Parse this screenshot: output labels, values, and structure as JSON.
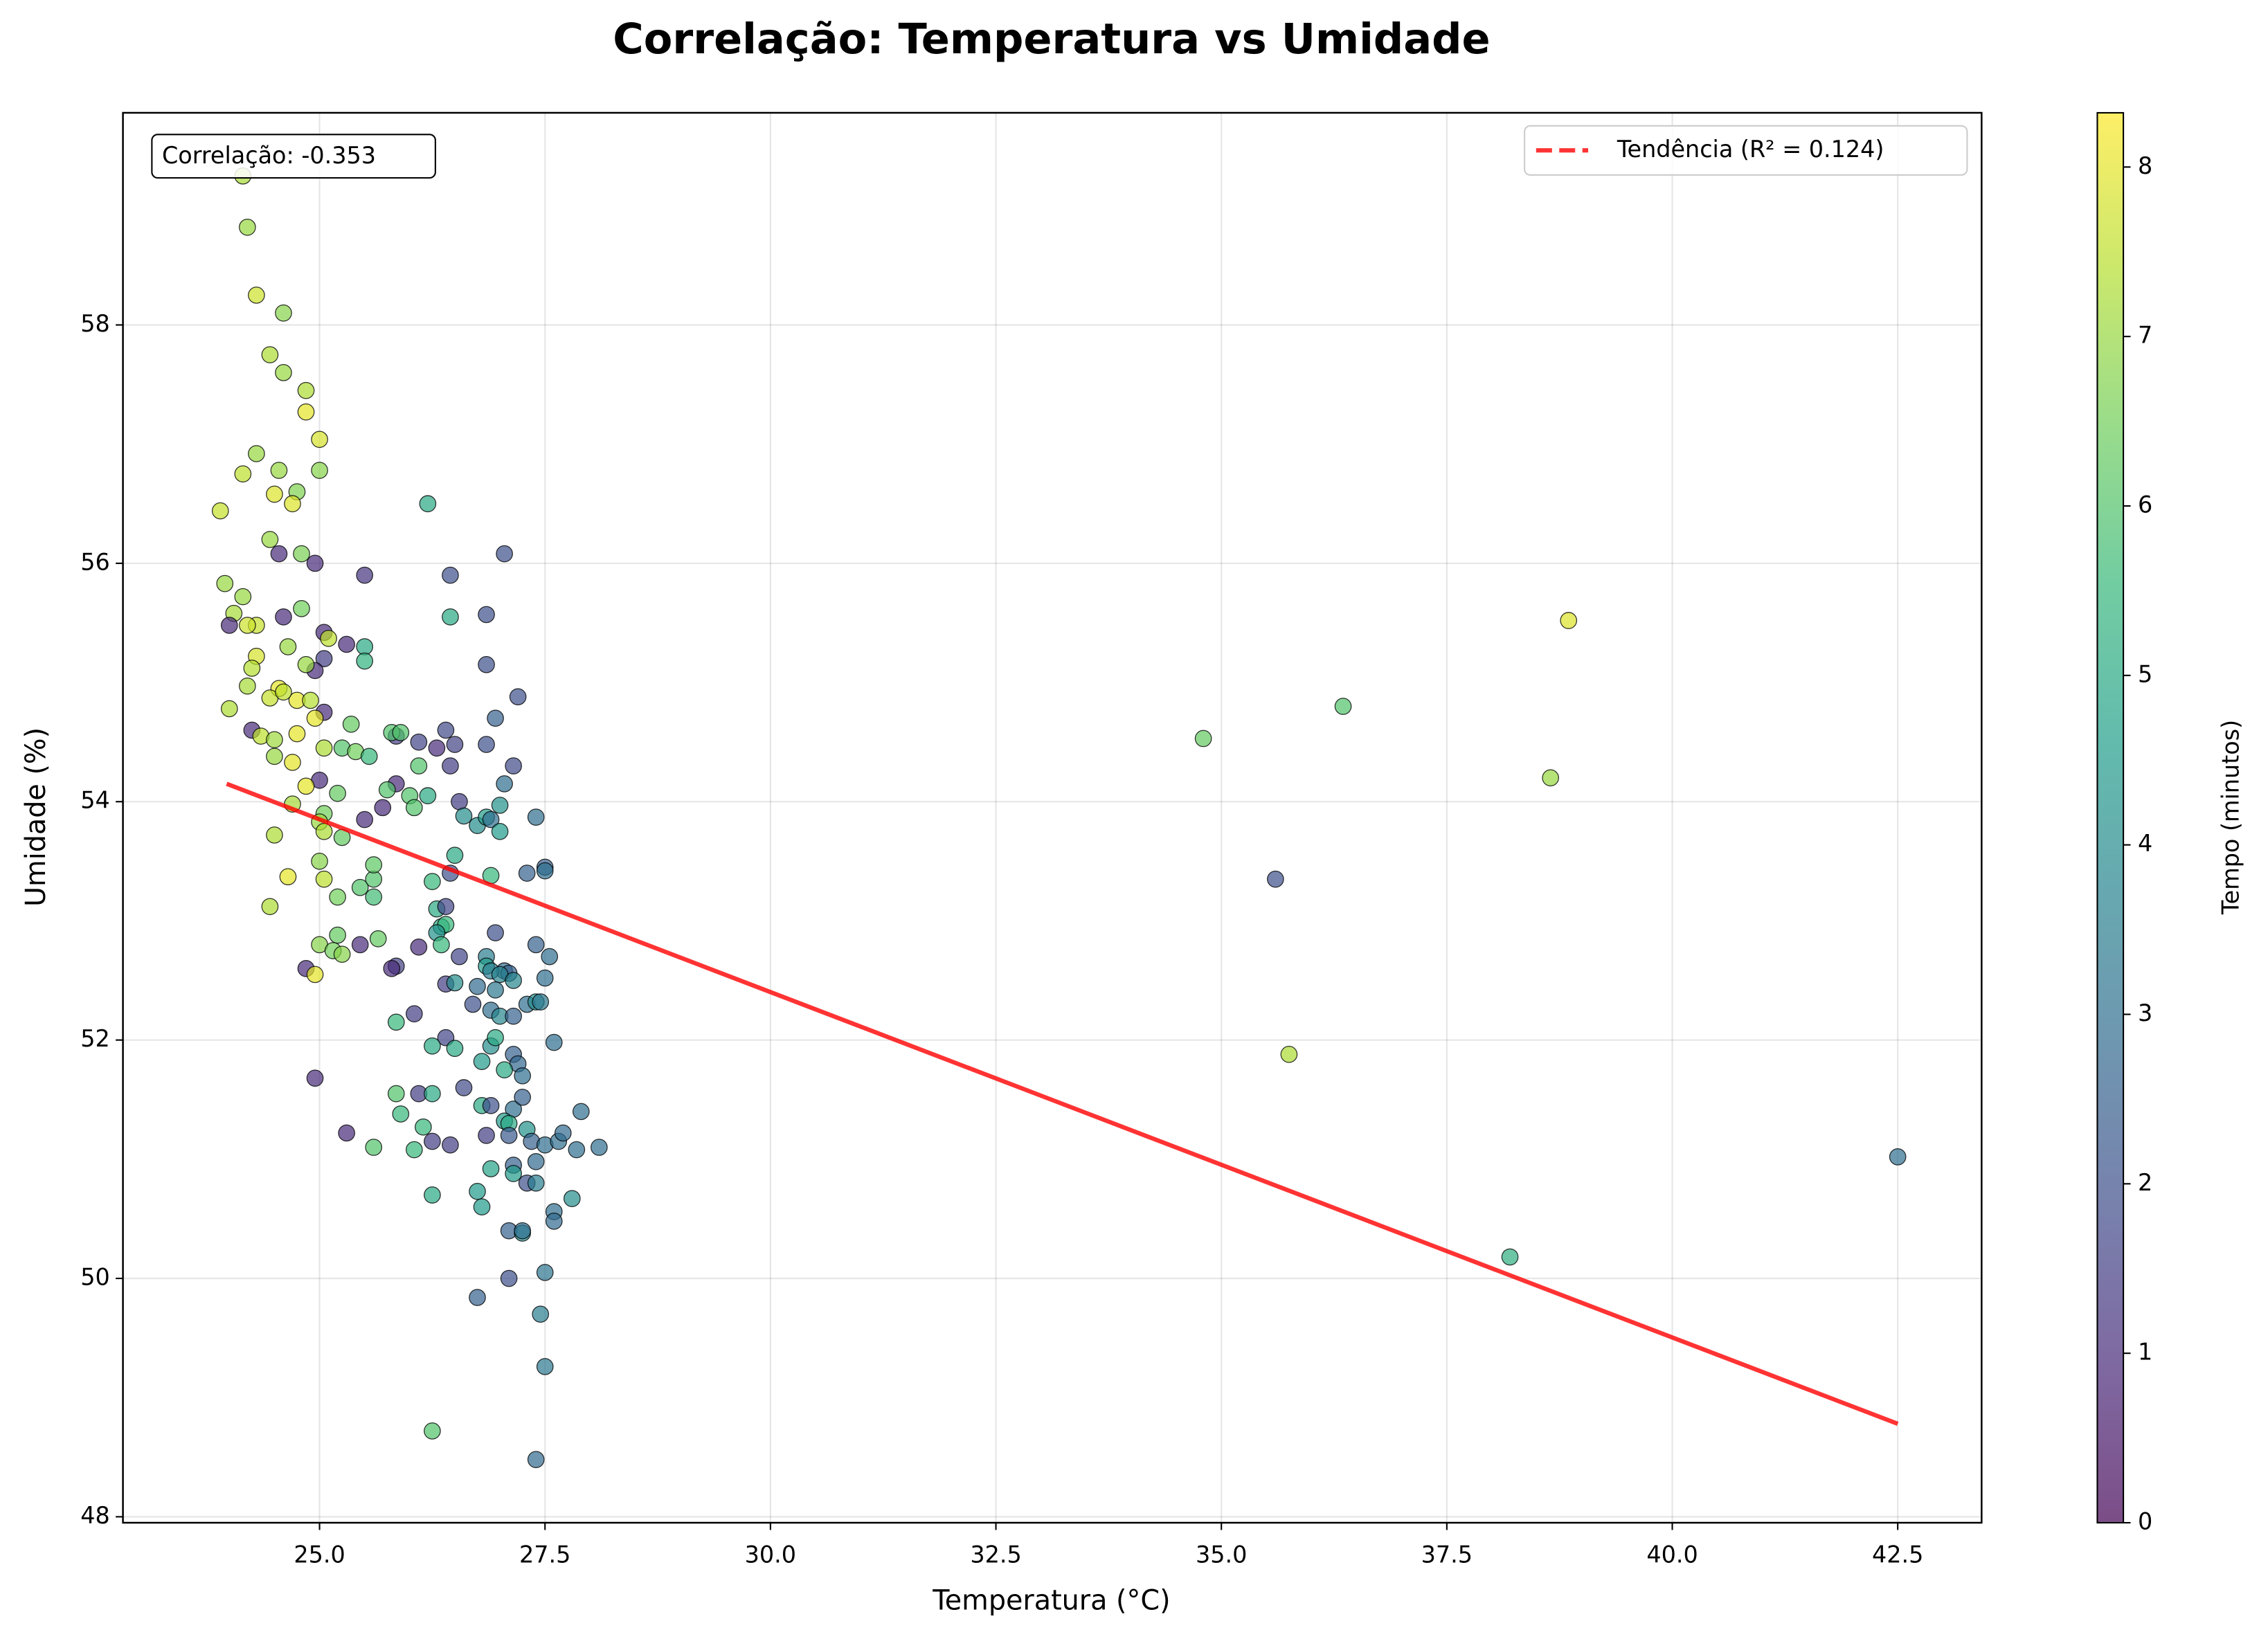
{
  "chart_data": {
    "type": "scatter",
    "title": "Correlação: Temperatura vs Umidade",
    "x_label": "Temperatura (°C)",
    "y_label": "Umidade (%)",
    "annotation": "Correlação: -0.353",
    "xlim": [
      22.82,
      43.43
    ],
    "ylim": [
      47.95,
      59.78
    ],
    "xticks": [
      {
        "value": 25,
        "label": "25.0"
      },
      27.5,
      {
        "value": 30,
        "label": "30.0"
      },
      32.5,
      {
        "value": 35,
        "label": "35.0"
      },
      37.5,
      {
        "value": 40,
        "label": "40.0"
      },
      42.5
    ],
    "yticks": [
      48,
      50,
      52,
      54,
      56,
      58
    ],
    "grid": true,
    "legend": "upper right",
    "colormap": "viridis",
    "clim": [
      0,
      8.32
    ],
    "colorbar_label": "Tempo (minutos)",
    "colorbar_ticks": [
      0,
      1,
      2,
      3,
      4,
      5,
      6,
      7,
      8
    ],
    "series": [
      {
        "type": "scatter",
        "x": [
          34.8,
          35.6,
          36.35,
          35.75,
          38.85,
          38.65,
          38.2,
          42.5,
          24.15,
          24.2,
          24.3,
          24.6,
          24.45,
          24.6,
          24.85,
          24.85,
          25.0,
          24.3,
          24.15,
          24.55,
          25.0,
          23.9,
          24.5,
          24.75,
          24.7,
          24.45,
          24.55,
          24.8,
          24.95,
          23.95,
          24.05,
          24.15,
          24.0,
          24.3,
          24.2,
          24.6,
          24.8,
          25.05,
          25.1,
          25.3,
          25.5,
          25.5,
          24.3,
          24.25,
          25.05,
          24.95,
          24.2,
          24.55,
          24.65,
          24.85,
          24.45,
          24.75,
          24.9,
          24.6,
          25.05,
          24.95,
          24.0,
          24.25,
          24.35,
          24.5,
          24.75,
          25.05,
          25.25,
          25.4,
          25.35,
          25.55,
          24.5,
          24.7,
          25.0,
          24.85,
          25.2,
          24.7,
          25.05,
          25.0,
          25.05,
          25.25,
          25.5,
          24.5,
          24.65,
          25.0,
          25.05,
          25.2,
          24.45,
          25.45,
          25.6,
          25.6,
          25.6,
          25.0,
          25.2,
          25.45,
          25.15,
          25.25,
          24.85,
          24.95,
          25.65,
          24.95,
          25.3,
          25.6,
          26.2,
          27.05,
          25.5,
          26.45,
          26.45,
          26.85,
          26.85,
          27.2,
          26.95,
          25.85,
          25.8,
          25.9,
          26.1,
          26.4,
          26.5,
          26.85,
          26.3,
          26.45,
          27.15,
          27.05,
          25.85,
          25.75,
          26.0,
          26.2,
          26.1,
          26.55,
          25.7,
          26.05,
          26.6,
          26.75,
          26.85,
          26.9,
          27.0,
          27.0,
          27.4,
          26.5,
          26.45,
          26.9,
          27.3,
          27.5,
          27.5,
          26.25,
          26.3,
          26.4,
          26.35,
          26.4,
          26.3,
          26.35,
          26.95,
          27.4,
          26.1,
          25.85,
          25.8,
          26.55,
          26.85,
          26.85,
          27.05,
          27.1,
          26.9,
          27.0,
          27.55,
          27.5,
          26.4,
          26.5,
          26.75,
          26.95,
          27.15,
          26.7,
          27.3,
          27.4,
          27.45,
          26.9,
          27.0,
          27.15,
          25.85,
          26.05,
          26.4,
          26.25,
          26.5,
          26.9,
          26.95,
          27.6,
          27.15,
          26.8,
          27.2,
          27.05,
          27.25,
          25.85,
          26.1,
          26.25,
          26.6,
          26.8,
          26.9,
          27.15,
          27.25,
          25.9,
          26.15,
          27.05,
          27.1,
          26.85,
          27.1,
          27.3,
          27.35,
          26.25,
          26.45,
          26.05,
          27.5,
          27.65,
          27.7,
          27.9,
          27.85,
          28.1,
          27.4,
          26.9,
          27.15,
          27.15,
          27.3,
          27.4,
          26.25,
          26.75,
          26.8,
          27.6,
          27.8,
          27.6,
          27.1,
          27.25,
          27.25,
          27.5,
          27.1,
          26.75,
          27.45,
          27.5,
          26.25,
          27.4
        ],
        "values": [
          54.53,
          53.35,
          54.8,
          51.88,
          55.52,
          54.2,
          50.18,
          51.02,
          59.25,
          58.82,
          58.25,
          58.1,
          57.75,
          57.6,
          57.45,
          57.27,
          57.04,
          56.92,
          56.75,
          56.78,
          56.78,
          56.44,
          56.58,
          56.6,
          56.5,
          56.2,
          56.08,
          56.08,
          56.0,
          55.83,
          55.58,
          55.72,
          55.48,
          55.48,
          55.48,
          55.55,
          55.62,
          55.42,
          55.37,
          55.32,
          55.3,
          55.18,
          55.22,
          55.12,
          55.2,
          55.1,
          54.97,
          54.95,
          55.3,
          55.15,
          54.87,
          54.85,
          54.85,
          54.92,
          54.75,
          54.7,
          54.78,
          54.6,
          54.55,
          54.52,
          54.57,
          54.45,
          54.45,
          54.42,
          54.65,
          54.38,
          54.38,
          54.33,
          54.18,
          54.13,
          54.07,
          53.98,
          53.9,
          53.83,
          53.75,
          53.7,
          53.85,
          53.72,
          53.37,
          53.5,
          53.35,
          53.2,
          53.12,
          53.28,
          53.35,
          53.2,
          53.47,
          52.8,
          52.88,
          52.8,
          52.75,
          52.72,
          52.6,
          52.55,
          52.85,
          51.68,
          51.22,
          51.1,
          56.5,
          56.08,
          55.9,
          55.9,
          55.55,
          55.57,
          55.15,
          54.88,
          54.7,
          54.55,
          54.58,
          54.58,
          54.5,
          54.6,
          54.48,
          54.48,
          54.45,
          54.3,
          54.3,
          54.15,
          54.15,
          54.1,
          54.05,
          54.05,
          54.3,
          54.0,
          53.95,
          53.95,
          53.88,
          53.8,
          53.87,
          53.85,
          53.75,
          53.97,
          53.87,
          53.55,
          53.4,
          53.38,
          53.4,
          53.45,
          53.42,
          53.33,
          53.1,
          53.12,
          52.95,
          52.97,
          52.9,
          52.8,
          52.9,
          52.8,
          52.78,
          52.62,
          52.6,
          52.7,
          52.7,
          52.62,
          52.58,
          52.56,
          52.58,
          52.55,
          52.7,
          52.52,
          52.47,
          52.48,
          52.45,
          52.42,
          52.5,
          52.3,
          52.3,
          52.32,
          52.32,
          52.25,
          52.2,
          52.2,
          52.15,
          52.22,
          52.02,
          51.95,
          51.93,
          51.95,
          52.02,
          51.98,
          51.88,
          51.82,
          51.8,
          51.75,
          51.7,
          51.55,
          51.55,
          51.55,
          51.6,
          51.45,
          51.45,
          51.42,
          51.52,
          51.38,
          51.27,
          51.32,
          51.3,
          51.2,
          51.2,
          51.25,
          51.15,
          51.15,
          51.12,
          51.08,
          51.12,
          51.15,
          51.22,
          51.4,
          51.08,
          51.1,
          50.98,
          50.92,
          50.95,
          50.88,
          50.8,
          50.8,
          50.7,
          50.73,
          50.6,
          50.56,
          50.67,
          50.48,
          50.4,
          50.38,
          50.4,
          50.05,
          50.0,
          49.84,
          49.7,
          49.26,
          48.72,
          48.48
        ],
        "c": [
          6.3,
          2,
          6,
          7.3,
          7.9,
          7,
          5.2,
          3,
          7.2,
          7,
          7.7,
          6.8,
          7.3,
          7,
          7.3,
          8,
          7.8,
          7,
          7.5,
          7,
          6.8,
          7.6,
          7.9,
          6.7,
          7.9,
          7,
          1,
          6.6,
          1,
          7,
          7.2,
          7,
          1,
          7.6,
          7.7,
          1,
          6.5,
          1,
          7.5,
          1,
          5,
          5.3,
          7.8,
          7.4,
          1.5,
          1,
          7.2,
          8,
          7,
          7,
          7.6,
          8,
          7.4,
          7.5,
          1,
          8,
          7.3,
          1,
          7.5,
          7.1,
          8,
          7.3,
          6,
          6.5,
          6.3,
          5.5,
          7,
          8,
          1,
          8,
          6.3,
          7.2,
          6.5,
          7,
          7.3,
          6.3,
          1,
          7.3,
          8,
          6.8,
          7.5,
          6.5,
          7.3,
          6,
          6,
          5.7,
          6.2,
          6.8,
          6.3,
          1,
          6.5,
          6.8,
          1,
          8,
          6.3,
          1,
          1,
          6,
          5,
          2,
          1.2,
          2,
          5,
          2,
          2,
          2,
          2.5,
          1.5,
          6,
          6,
          1.7,
          1.8,
          1.6,
          2,
          1,
          1.5,
          1.8,
          3,
          1,
          6,
          6,
          5,
          6,
          1.5,
          1,
          6,
          4,
          4,
          4.5,
          3,
          4.5,
          4.2,
          3,
          5,
          2,
          5.5,
          2.5,
          2.5,
          3,
          5.5,
          5,
          1.7,
          5,
          5.5,
          4.2,
          5.5,
          2,
          2.5,
          1,
          1.5,
          1,
          1.7,
          3.5,
          4.5,
          2.8,
          2.5,
          3.5,
          3.7,
          3,
          3,
          1.5,
          4,
          2.8,
          3.3,
          3.8,
          2,
          3,
          4,
          3.3,
          3,
          3.8,
          2.5,
          5.5,
          1.5,
          1.7,
          5,
          5,
          4,
          5,
          3,
          2.5,
          4.5,
          2.7,
          5,
          3,
          6,
          1.5,
          5,
          1.8,
          5,
          2,
          3,
          2.5,
          5.5,
          5.5,
          4.5,
          5,
          1.5,
          2.3,
          4.2,
          2.5,
          1.5,
          1.5,
          5.5,
          3,
          3,
          2.8,
          3,
          3,
          3,
          2.8,
          4.8,
          2.5,
          4.5,
          2,
          3.5,
          5,
          4.5,
          4.5,
          3,
          4,
          2.8,
          2.5,
          4,
          3,
          3.2,
          2,
          2.5,
          3.5,
          3.3,
          6,
          2.8
        ]
      },
      {
        "type": "line",
        "name": "Tendência (R² = 0.124)",
        "color": "#ff0000",
        "dashed_legend": true,
        "x": [
          23.97,
          42.5
        ],
        "values": [
          54.15,
          48.78
        ]
      }
    ]
  }
}
